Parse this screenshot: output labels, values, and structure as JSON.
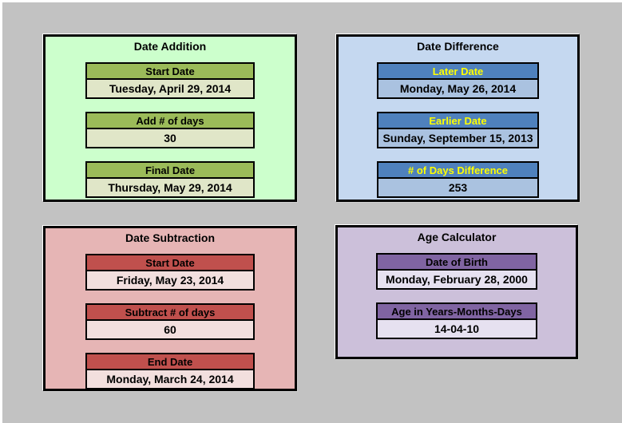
{
  "page": {
    "background": "#C2C2C2",
    "edge_highlight": "#FFFFFF",
    "border_color": "#000000"
  },
  "panels": [
    {
      "id": "date-addition",
      "title": "Date Addition",
      "colors": {
        "panel-bg": "#CCFFCC",
        "header-bg": "#9BBB59",
        "header-text": "#000000",
        "value-bg": "#E0E6C8"
      },
      "fields": [
        {
          "label": "Start Date",
          "value": "Tuesday, April 29, 2014"
        },
        {
          "label": "Add # of days",
          "value": "30"
        },
        {
          "label": "Final Date",
          "value": "Thursday, May 29, 2014"
        }
      ]
    },
    {
      "id": "date-difference",
      "title": "Date Difference",
      "colors": {
        "panel-bg": "#C5D8F0",
        "header-bg": "#4F81BD",
        "header-text": "#FFFF00",
        "value-bg": "#AAC2E0"
      },
      "fields": [
        {
          "label": "Later Date",
          "value": "Monday, May 26, 2014"
        },
        {
          "label": "Earlier Date",
          "value": "Sunday, September 15, 2013"
        },
        {
          "label": "# of Days Difference",
          "value": "253"
        }
      ]
    },
    {
      "id": "date-subtraction",
      "title": "Date Subtraction",
      "colors": {
        "panel-bg": "#E6B5B5",
        "header-bg": "#C0504D",
        "header-text": "#000000",
        "value-bg": "#F2DFDE"
      },
      "fields": [
        {
          "label": "Start Date",
          "value": "Friday, May 23, 2014"
        },
        {
          "label": "Subtract # of days",
          "value": "60"
        },
        {
          "label": "End Date",
          "value": "Monday, March 24, 2014"
        }
      ]
    },
    {
      "id": "age-calculator",
      "title": "Age Calculator",
      "colors": {
        "panel-bg": "#CCC0DA",
        "header-bg": "#8064A2",
        "header-text": "#000000",
        "value-bg": "#E6E1F0"
      },
      "fields": [
        {
          "label": "Date of Birth",
          "value": "Monday, February 28, 2000"
        },
        {
          "label": "Age in Years-Months-Days",
          "value": "14-04-10"
        }
      ]
    }
  ]
}
